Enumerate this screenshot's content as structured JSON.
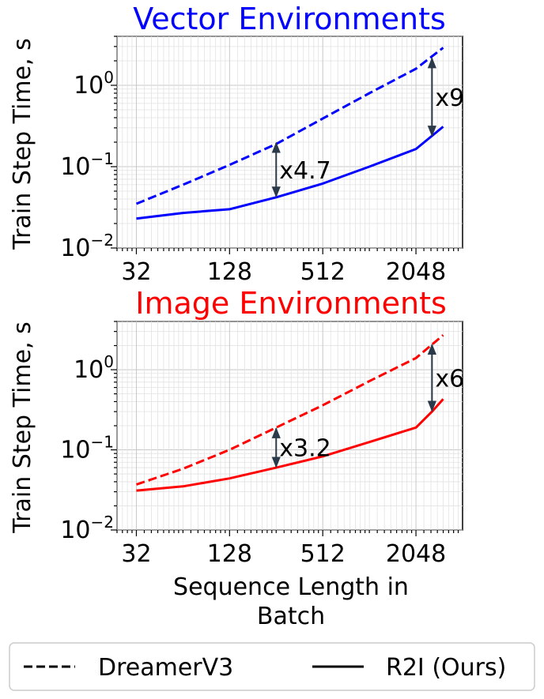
{
  "chart_data": [
    {
      "type": "line",
      "title": "Vector Environments",
      "title_color": "#0000ff",
      "series_color": "#0000ff",
      "xlabel": "",
      "ylabel": "Train Step Time, s",
      "x_scale": "log2",
      "y_scale": "log10",
      "xlim": [
        24,
        4096
      ],
      "ylim": [
        0.01,
        4
      ],
      "x_ticks": [
        32,
        128,
        512,
        2048
      ],
      "x_tick_labels": [
        "32",
        "128",
        "512",
        "2048"
      ],
      "y_ticks": [
        0.01,
        0.1,
        1
      ],
      "y_tick_labels": [
        {
          "base": "10",
          "exp": "−2"
        },
        {
          "base": "10",
          "exp": "−1"
        },
        {
          "base": "10",
          "exp": "0"
        }
      ],
      "grid": true,
      "series": [
        {
          "name": "DreamerV3",
          "style": "dashed",
          "x": [
            32,
            64,
            128,
            256,
            512,
            1024,
            2048,
            3072
          ],
          "values": [
            0.035,
            0.06,
            0.105,
            0.19,
            0.39,
            0.8,
            1.6,
            2.9
          ]
        },
        {
          "name": "R2I (Ours)",
          "style": "solid",
          "x": [
            32,
            64,
            128,
            256,
            512,
            1024,
            2048,
            3072
          ],
          "values": [
            0.023,
            0.027,
            0.03,
            0.042,
            0.062,
            0.1,
            0.165,
            0.31
          ]
        }
      ],
      "annotations": [
        {
          "text": "x4.7",
          "x": 256,
          "from": 0.042,
          "to": 0.2
        },
        {
          "text": "x9",
          "x": 2600,
          "from": 0.235,
          "to": 2.2
        }
      ]
    },
    {
      "type": "line",
      "title": "Image Environments",
      "title_color": "#ff0000",
      "series_color": "#ff0000",
      "xlabel": "Sequence Length in Batch",
      "xlabel_lines": [
        "Sequence Length in",
        "Batch"
      ],
      "ylabel": "Train Step Time, s",
      "x_scale": "log2",
      "y_scale": "log10",
      "xlim": [
        24,
        4096
      ],
      "ylim": [
        0.01,
        4
      ],
      "x_ticks": [
        32,
        128,
        512,
        2048
      ],
      "x_tick_labels": [
        "32",
        "128",
        "512",
        "2048"
      ],
      "y_ticks": [
        0.01,
        0.1,
        1
      ],
      "y_tick_labels": [
        {
          "base": "10",
          "exp": "−2"
        },
        {
          "base": "10",
          "exp": "−1"
        },
        {
          "base": "10",
          "exp": "0"
        }
      ],
      "grid": true,
      "series": [
        {
          "name": "DreamerV3",
          "style": "dashed",
          "x": [
            32,
            64,
            128,
            256,
            512,
            1024,
            2048,
            3072
          ],
          "values": [
            0.037,
            0.058,
            0.1,
            0.19,
            0.36,
            0.72,
            1.4,
            2.7
          ]
        },
        {
          "name": "R2I (Ours)",
          "style": "solid",
          "x": [
            32,
            64,
            128,
            256,
            512,
            1024,
            2048,
            2600,
            3072
          ],
          "values": [
            0.031,
            0.035,
            0.044,
            0.06,
            0.083,
            0.125,
            0.19,
            0.3,
            0.43
          ]
        }
      ],
      "annotations": [
        {
          "text": "x3.2",
          "x": 256,
          "from": 0.06,
          "to": 0.19
        },
        {
          "text": "x6",
          "x": 2600,
          "from": 0.3,
          "to": 2.1
        }
      ]
    }
  ],
  "legend": {
    "placement": "bottom",
    "entries": [
      {
        "label": "DreamerV3",
        "style": "dashed"
      },
      {
        "label": "R2I (Ours)",
        "style": "solid"
      }
    ]
  }
}
